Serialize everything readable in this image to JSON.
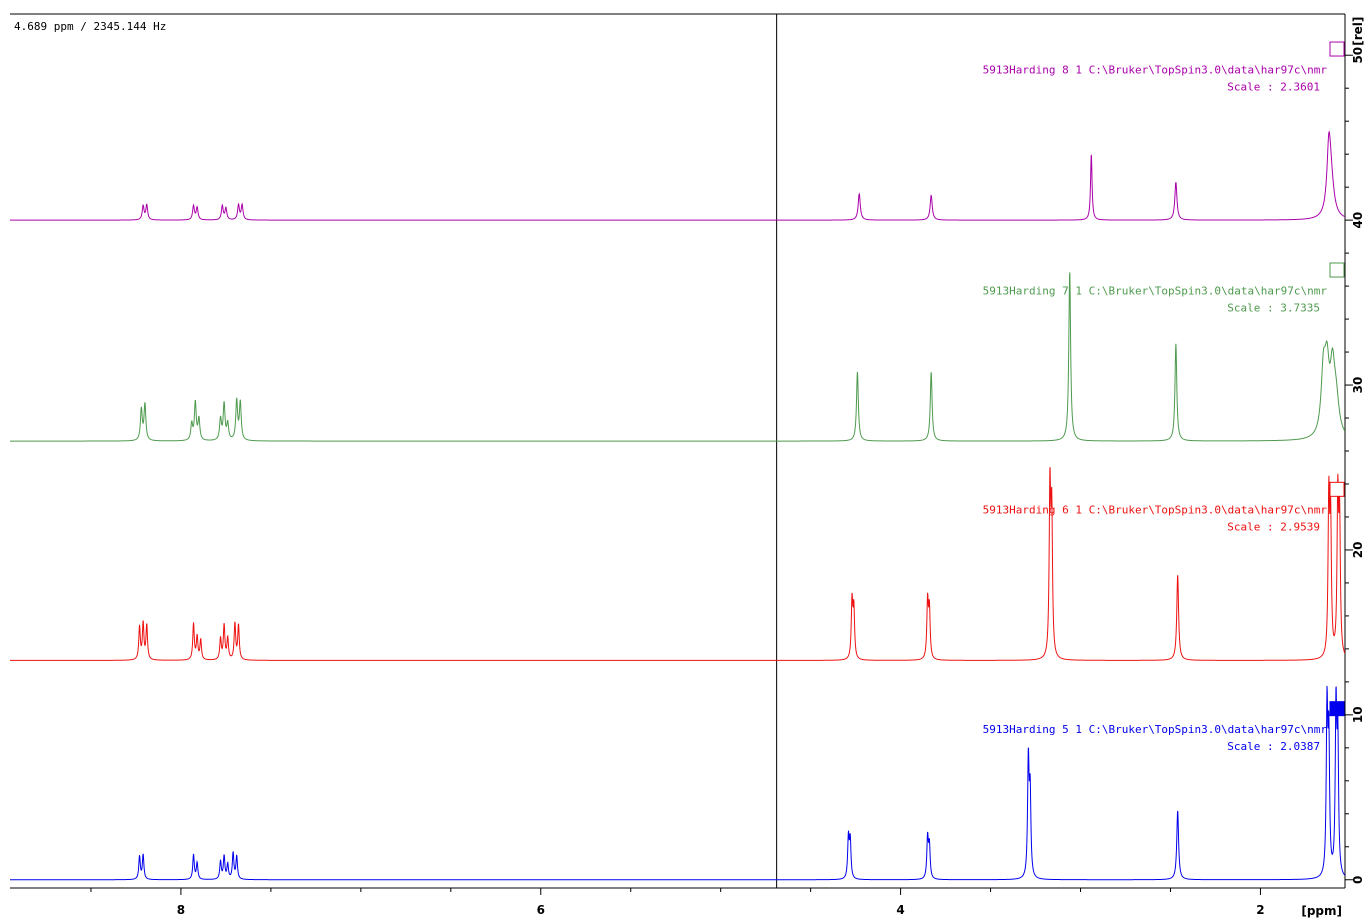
{
  "cursor_readout": "4.689 ppm / 2345.144 Hz",
  "chart_data": {
    "type": "line",
    "xlabel": "[ppm]",
    "ylabel": "[rel]",
    "xlim": [
      8.95,
      1.53
    ],
    "ylim": [
      -0.5,
      52.5
    ],
    "x_ticks": [
      8,
      6,
      4,
      2
    ],
    "y_ticks": [
      0,
      10,
      20,
      30,
      40,
      50
    ],
    "cursor_ppm": 4.689,
    "grid": false,
    "series": [
      {
        "spectrum": "5913Harding",
        "expno": "8",
        "procno": "1",
        "path": "C:\\Bruker\\TopSpin3.0\\data\\har97c\\nmr",
        "scale_label": "Scale : 2.3601",
        "color": "#aa00aa",
        "baseline": 40.0,
        "box_filled": false,
        "peaks": [
          {
            "ppm": 8.21,
            "h": 0.85,
            "w": 0.006
          },
          {
            "ppm": 8.19,
            "h": 0.9,
            "w": 0.006
          },
          {
            "ppm": 7.93,
            "h": 0.85,
            "w": 0.006
          },
          {
            "ppm": 7.91,
            "h": 0.75,
            "w": 0.006
          },
          {
            "ppm": 7.77,
            "h": 0.85,
            "w": 0.006
          },
          {
            "ppm": 7.75,
            "h": 0.7,
            "w": 0.006
          },
          {
            "ppm": 7.68,
            "h": 0.9,
            "w": 0.006
          },
          {
            "ppm": 7.66,
            "h": 0.9,
            "w": 0.006
          },
          {
            "ppm": 4.23,
            "h": 1.6,
            "w": 0.007
          },
          {
            "ppm": 3.83,
            "h": 1.5,
            "w": 0.007
          },
          {
            "ppm": 2.94,
            "h": 4.0,
            "w": 0.005
          },
          {
            "ppm": 2.47,
            "h": 2.3,
            "w": 0.007
          },
          {
            "ppm": 1.62,
            "h": 3.2,
            "w": 0.012
          },
          {
            "ppm": 1.61,
            "h": 2.6,
            "w": 0.02
          }
        ]
      },
      {
        "spectrum": "5913Harding",
        "expno": "7",
        "procno": "1",
        "path": "C:\\Bruker\\TopSpin3.0\\data\\har97c\\nmr",
        "scale_label": "Scale : 3.7335",
        "color": "#4e9a4e",
        "baseline": 26.6,
        "box_filled": false,
        "peaks": [
          {
            "ppm": 8.22,
            "h": 1.9,
            "w": 0.006
          },
          {
            "ppm": 8.2,
            "h": 2.2,
            "w": 0.006
          },
          {
            "ppm": 7.94,
            "h": 1.0,
            "w": 0.006
          },
          {
            "ppm": 7.92,
            "h": 2.3,
            "w": 0.006
          },
          {
            "ppm": 7.9,
            "h": 1.3,
            "w": 0.006
          },
          {
            "ppm": 7.78,
            "h": 1.3,
            "w": 0.006
          },
          {
            "ppm": 7.76,
            "h": 2.2,
            "w": 0.006
          },
          {
            "ppm": 7.74,
            "h": 1.0,
            "w": 0.006
          },
          {
            "ppm": 7.69,
            "h": 2.4,
            "w": 0.006
          },
          {
            "ppm": 7.67,
            "h": 2.3,
            "w": 0.006
          },
          {
            "ppm": 4.24,
            "h": 4.2,
            "w": 0.006
          },
          {
            "ppm": 3.83,
            "h": 4.2,
            "w": 0.006
          },
          {
            "ppm": 3.06,
            "h": 10.3,
            "w": 0.006
          },
          {
            "ppm": 2.47,
            "h": 5.9,
            "w": 0.006
          },
          {
            "ppm": 1.65,
            "h": 3.7,
            "w": 0.015
          },
          {
            "ppm": 1.63,
            "h": 3.7,
            "w": 0.015
          },
          {
            "ppm": 1.6,
            "h": 3.5,
            "w": 0.015
          },
          {
            "ppm": 1.58,
            "h": 2.2,
            "w": 0.02
          }
        ]
      },
      {
        "spectrum": "5913Harding",
        "expno": "6",
        "procno": "1",
        "path": "C:\\Bruker\\TopSpin3.0\\data\\har97c\\nmr",
        "scale_label": "Scale : 2.9539",
        "color": "#ee1111",
        "baseline": 13.3,
        "box_filled": false,
        "peaks": [
          {
            "ppm": 8.23,
            "h": 2.0,
            "w": 0.005
          },
          {
            "ppm": 8.21,
            "h": 2.2,
            "w": 0.005
          },
          {
            "ppm": 8.19,
            "h": 2.1,
            "w": 0.005
          },
          {
            "ppm": 7.93,
            "h": 2.2,
            "w": 0.005
          },
          {
            "ppm": 7.91,
            "h": 1.4,
            "w": 0.005
          },
          {
            "ppm": 7.89,
            "h": 1.2,
            "w": 0.005
          },
          {
            "ppm": 7.78,
            "h": 1.3,
            "w": 0.005
          },
          {
            "ppm": 7.76,
            "h": 2.1,
            "w": 0.005
          },
          {
            "ppm": 7.74,
            "h": 1.3,
            "w": 0.005
          },
          {
            "ppm": 7.7,
            "h": 2.2,
            "w": 0.005
          },
          {
            "ppm": 7.68,
            "h": 2.1,
            "w": 0.005
          },
          {
            "ppm": 4.27,
            "h": 3.5,
            "w": 0.005
          },
          {
            "ppm": 4.26,
            "h": 3.0,
            "w": 0.005
          },
          {
            "ppm": 3.85,
            "h": 3.5,
            "w": 0.005
          },
          {
            "ppm": 3.84,
            "h": 3.0,
            "w": 0.005
          },
          {
            "ppm": 3.17,
            "h": 10.1,
            "w": 0.005
          },
          {
            "ppm": 3.16,
            "h": 8.5,
            "w": 0.005
          },
          {
            "ppm": 2.46,
            "h": 5.2,
            "w": 0.006
          },
          {
            "ppm": 1.62,
            "h": 9.4,
            "w": 0.005
          },
          {
            "ppm": 1.61,
            "h": 8.0,
            "w": 0.005
          },
          {
            "ppm": 1.57,
            "h": 9.5,
            "w": 0.005
          },
          {
            "ppm": 1.56,
            "h": 8.0,
            "w": 0.005
          }
        ]
      },
      {
        "spectrum": "5913Harding",
        "expno": "5",
        "procno": "1",
        "path": "C:\\Bruker\\TopSpin3.0\\data\\har97c\\nmr",
        "scale_label": "Scale : 2.0387",
        "color": "#0000ee",
        "baseline": 0.0,
        "box_filled": true,
        "peaks": [
          {
            "ppm": 8.23,
            "h": 1.4,
            "w": 0.005
          },
          {
            "ppm": 8.21,
            "h": 1.5,
            "w": 0.005
          },
          {
            "ppm": 7.93,
            "h": 1.5,
            "w": 0.005
          },
          {
            "ppm": 7.91,
            "h": 1.0,
            "w": 0.005
          },
          {
            "ppm": 7.78,
            "h": 1.1,
            "w": 0.005
          },
          {
            "ppm": 7.76,
            "h": 1.4,
            "w": 0.005
          },
          {
            "ppm": 7.74,
            "h": 0.9,
            "w": 0.005
          },
          {
            "ppm": 7.71,
            "h": 1.6,
            "w": 0.005
          },
          {
            "ppm": 7.69,
            "h": 1.4,
            "w": 0.005
          },
          {
            "ppm": 4.29,
            "h": 2.5,
            "w": 0.005
          },
          {
            "ppm": 4.28,
            "h": 2.3,
            "w": 0.005
          },
          {
            "ppm": 3.85,
            "h": 2.5,
            "w": 0.005
          },
          {
            "ppm": 3.84,
            "h": 2.0,
            "w": 0.005
          },
          {
            "ppm": 3.29,
            "h": 7.1,
            "w": 0.005
          },
          {
            "ppm": 3.28,
            "h": 5.0,
            "w": 0.005
          },
          {
            "ppm": 2.46,
            "h": 4.2,
            "w": 0.006
          },
          {
            "ppm": 1.63,
            "h": 10.0,
            "w": 0.005
          },
          {
            "ppm": 1.62,
            "h": 8.0,
            "w": 0.005
          },
          {
            "ppm": 1.58,
            "h": 10.0,
            "w": 0.005
          },
          {
            "ppm": 1.57,
            "h": 8.0,
            "w": 0.005
          }
        ]
      }
    ]
  }
}
